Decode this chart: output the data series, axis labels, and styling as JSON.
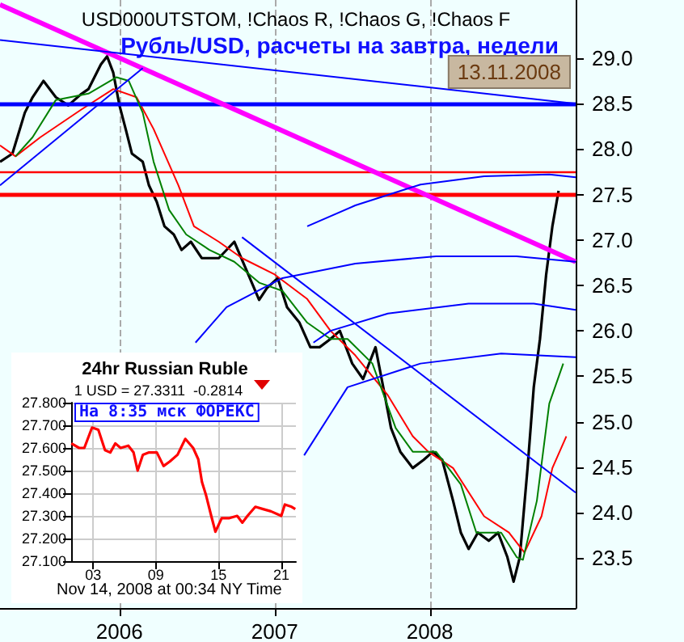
{
  "chart_data": [
    {
      "type": "line",
      "title": "Рубль/USD, расчеты на завтра, недели",
      "subtitle": "USD000UTSTOM, !Chaos R, !Chaos G, !Chaos F",
      "annotations": [
        "13.11.2008"
      ],
      "xlim": [
        2005.23,
        2008.94
      ],
      "xticks": [
        2006,
        2007,
        2008
      ],
      "ylim": [
        22.95,
        29.64
      ],
      "yticks": [
        {
          "value": 23.5,
          "label": "23.5"
        },
        {
          "value": 24,
          "label": "24.0"
        },
        {
          "value": 24.5,
          "label": "24.5"
        },
        {
          "value": 25,
          "label": "25.0"
        },
        {
          "value": 25.5,
          "label": "25.5"
        },
        {
          "value": 26,
          "label": "26.0"
        },
        {
          "value": 26.5,
          "label": "26.5"
        },
        {
          "value": 27,
          "label": "27.0"
        },
        {
          "value": 27.5,
          "label": "27.5"
        },
        {
          "value": 28,
          "label": "28.0"
        },
        {
          "value": 28.5,
          "label": "28.5"
        },
        {
          "value": 29,
          "label": "29.0"
        }
      ],
      "grid": "x",
      "marker": "none",
      "ref_lines": [
        {
          "axis": "y",
          "value": 28.5,
          "color": "#0000ff"
        },
        {
          "axis": "y",
          "value": 27.5,
          "color": "#ff0000"
        },
        {
          "axis": "y",
          "value": 27.75,
          "color": "#ff0000"
        }
      ],
      "series": [
        {
          "color": "#000000",
          "x": [
            2005.23,
            2005.31,
            2005.39,
            2005.44,
            2005.51,
            2005.59,
            2005.67,
            2005.75,
            2005.8,
            2005.88,
            2005.92,
            2005.96,
            2006.0,
            2006.04,
            2006.08,
            2006.15,
            2006.19,
            2006.24,
            2006.29,
            2006.35,
            2006.4,
            2006.46,
            2006.53,
            2006.64,
            2006.74,
            2006.81,
            2006.9,
            2006.95,
            2007.02,
            2007.08,
            2007.16,
            2007.23,
            2007.29,
            2007.36,
            2007.42,
            2007.5,
            2007.57,
            2007.65,
            2007.71,
            2007.75,
            2007.81,
            2007.89,
            2007.96,
            2008.02,
            2008.08,
            2008.15,
            2008.2,
            2008.25,
            2008.31,
            2008.38,
            2008.44,
            2008.5,
            2008.54,
            2008.58,
            2008.63,
            2008.67,
            2008.71,
            2008.75,
            2008.79,
            2008.83
          ],
          "values": [
            27.86,
            27.95,
            28.4,
            28.57,
            28.75,
            28.57,
            28.48,
            28.6,
            28.66,
            28.93,
            29.02,
            28.84,
            28.48,
            28.22,
            27.95,
            27.86,
            27.6,
            27.42,
            27.15,
            27.06,
            26.89,
            26.98,
            26.8,
            26.8,
            26.98,
            26.7,
            26.34,
            26.47,
            26.58,
            26.26,
            26.09,
            25.82,
            25.82,
            25.91,
            26.0,
            25.64,
            25.47,
            25.82,
            25.29,
            24.93,
            24.67,
            24.49,
            24.58,
            24.67,
            24.58,
            24.13,
            23.78,
            23.6,
            23.78,
            23.69,
            23.78,
            23.51,
            23.24,
            23.51,
            24.49,
            25.38,
            25.91,
            26.62,
            27.15,
            27.54
          ]
        },
        {
          "color": "#ff0000",
          "x": [
            2005.23,
            2005.33,
            2005.49,
            2005.75,
            2005.96,
            2006.11,
            2006.22,
            2006.38,
            2006.48,
            2006.64,
            2006.79,
            2007.0,
            2007.21,
            2007.36,
            2007.52,
            2007.73,
            2007.89,
            2007.99,
            2008.15,
            2008.35,
            2008.51,
            2008.61,
            2008.72,
            2008.79,
            2008.88
          ],
          "values": [
            28.04,
            27.92,
            28.13,
            28.43,
            28.66,
            28.57,
            28.22,
            27.6,
            27.15,
            26.98,
            26.8,
            26.62,
            26.35,
            26.0,
            25.73,
            25.29,
            24.84,
            24.67,
            24.49,
            23.96,
            23.78,
            23.56,
            23.96,
            24.49,
            24.84
          ]
        },
        {
          "color": "#008000",
          "x": [
            2005.33,
            2005.44,
            2005.59,
            2005.8,
            2005.98,
            2006.06,
            2006.15,
            2006.22,
            2006.32,
            2006.43,
            2006.58,
            2006.74,
            2006.9,
            2007.05,
            2007.21,
            2007.36,
            2007.47,
            2007.63,
            2007.78,
            2007.89,
            2008.04,
            2008.2,
            2008.3,
            2008.46,
            2008.56,
            2008.6,
            2008.69,
            2008.77,
            2008.86
          ],
          "values": [
            27.92,
            28.13,
            28.54,
            28.61,
            28.79,
            28.75,
            28.4,
            27.86,
            27.33,
            27.06,
            26.89,
            26.76,
            26.53,
            26.44,
            26.09,
            25.91,
            25.91,
            25.64,
            24.93,
            24.67,
            24.67,
            24.31,
            23.78,
            23.78,
            23.51,
            23.48,
            24.13,
            25.2,
            25.64
          ]
        },
        {
          "color": "#ff00ff",
          "x": [
            2005.23,
            2008.94
          ],
          "values": [
            29.59,
            26.76
          ]
        },
        {
          "color": "#0000ff",
          "x": [
            2005.23,
            2008.94
          ],
          "values": [
            29.2,
            28.5
          ]
        },
        {
          "color": "#0000ff",
          "x": [
            2005.23,
            2006.15
          ],
          "values": [
            27.6,
            28.89
          ]
        },
        {
          "color": "#0000ff",
          "x": [
            2006.79,
            2008.94
          ],
          "values": [
            27.03,
            24.22
          ]
        },
        {
          "color": "#0000ff",
          "x": [
            2007.21,
            2007.52,
            2007.94,
            2008.35,
            2008.77,
            2008.94
          ],
          "values": [
            27.15,
            27.38,
            27.61,
            27.7,
            27.72,
            27.69
          ]
        },
        {
          "color": "#0000ff",
          "x": [
            2006.49,
            2006.69,
            2007.05,
            2007.52,
            2008.04,
            2008.56,
            2008.94
          ],
          "values": [
            25.87,
            26.26,
            26.58,
            26.74,
            26.82,
            26.82,
            26.76
          ]
        },
        {
          "color": "#0000ff",
          "x": [
            2007.25,
            2007.36,
            2007.73,
            2008.25,
            2008.67,
            2008.94
          ],
          "values": [
            25.87,
            26.0,
            26.19,
            26.3,
            26.3,
            26.23
          ]
        },
        {
          "color": "#0000ff",
          "x": [
            2007.19,
            2007.47,
            2007.94,
            2008.46,
            2008.94
          ],
          "values": [
            24.63,
            25.38,
            25.64,
            25.75,
            25.71
          ]
        }
      ]
    },
    {
      "type": "line",
      "title": "24hr Russian Ruble",
      "subtitle": "1 USD = 27.3311  -0.2814",
      "annotations": [
        "На 8:35 мск ФОРЕКС",
        "Nov 14, 2008 at 00:34 NY Time"
      ],
      "color": "#ff0000",
      "grid": true,
      "marker": "none",
      "xlim": [
        0.9,
        22.4
      ],
      "xticks": [
        {
          "value": 3,
          "label": "03"
        },
        {
          "value": 9,
          "label": "09"
        },
        {
          "value": 15,
          "label": "15"
        },
        {
          "value": 21,
          "label": "21"
        }
      ],
      "ylim": [
        27.1,
        27.8
      ],
      "yticks": [
        {
          "value": 27.1,
          "label": "27.100"
        },
        {
          "value": 27.2,
          "label": "27.200"
        },
        {
          "value": 27.3,
          "label": "27.300"
        },
        {
          "value": 27.4,
          "label": "27.400"
        },
        {
          "value": 27.5,
          "label": "27.500"
        },
        {
          "value": 27.6,
          "label": "27.600"
        },
        {
          "value": 27.7,
          "label": "27.700"
        },
        {
          "value": 27.8,
          "label": "27.800"
        }
      ],
      "x": [
        0.92,
        1.66,
        2.16,
        2.9,
        3.5,
        4.14,
        4.64,
        5.13,
        5.63,
        6.37,
        6.87,
        7.26,
        7.76,
        8.35,
        9.1,
        9.74,
        10.34,
        11.08,
        11.82,
        12.57,
        13.06,
        13.41,
        13.81,
        14.3,
        14.7,
        15.3,
        16.04,
        16.78,
        17.28,
        17.77,
        18.52,
        19.26,
        20.01,
        21.0,
        21.34,
        21.99,
        22.34
      ],
      "values": [
        27.62,
        27.6,
        27.6,
        27.69,
        27.68,
        27.59,
        27.58,
        27.62,
        27.6,
        27.61,
        27.58,
        27.5,
        27.57,
        27.58,
        27.58,
        27.52,
        27.54,
        27.57,
        27.64,
        27.6,
        27.55,
        27.45,
        27.39,
        27.3,
        27.23,
        27.29,
        27.29,
        27.3,
        27.27,
        27.3,
        27.34,
        27.33,
        27.32,
        27.3,
        27.35,
        27.34,
        27.33
      ]
    }
  ]
}
